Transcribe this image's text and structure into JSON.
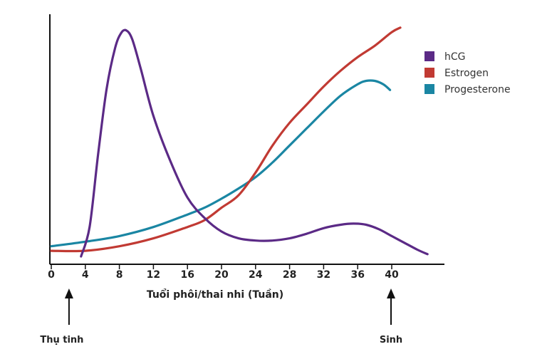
{
  "chart_data": {
    "type": "line",
    "title": "",
    "xlabel": "Tuổi phôi/thai nhi (Tuần)",
    "ylabel": "",
    "xlim": [
      0,
      46
    ],
    "ylim": [
      0,
      100
    ],
    "xticks": [
      0,
      4,
      8,
      12,
      16,
      20,
      24,
      28,
      32,
      36,
      40
    ],
    "yticks_shown": false,
    "grid": false,
    "legend": "top-right",
    "series": [
      {
        "name": "hCG",
        "color": "#5b2a86",
        "x": [
          3.5,
          4.5,
          5.5,
          6.5,
          7.5,
          8.2,
          8.8,
          9.5,
          10.5,
          12,
          14,
          16,
          18,
          20,
          22,
          24,
          26,
          28,
          30,
          32,
          34,
          35.5,
          37,
          38.5,
          40,
          41.5,
          43,
          44.2
        ],
        "y": [
          0,
          13,
          45,
          74,
          92,
          98.6,
          99.8,
          96,
          83,
          62,
          42,
          26,
          17,
          11,
          8,
          7,
          7,
          8,
          10,
          12.5,
          14,
          14.5,
          14,
          12,
          9,
          6,
          3,
          1
        ]
      },
      {
        "name": "Estrogen",
        "color": "#c13a33",
        "x": [
          0,
          4,
          8,
          12,
          16,
          18,
          20,
          22,
          24,
          26,
          28,
          30,
          32,
          34,
          36,
          38,
          40,
          41
        ],
        "y": [
          2.5,
          2.5,
          4.5,
          8,
          13,
          16,
          21.5,
          27,
          37,
          49,
          59,
          67,
          75,
          82,
          88,
          93,
          99,
          101
        ]
      },
      {
        "name": "Progesterone",
        "color": "#1a86a3",
        "x": [
          0,
          4,
          8,
          12,
          16,
          18,
          20,
          22,
          24,
          26,
          28,
          30,
          32,
          34,
          36,
          37,
          38,
          39,
          39.8
        ],
        "y": [
          4.5,
          6.5,
          9,
          13,
          18.5,
          21.5,
          25.5,
          30,
          35,
          41.5,
          49,
          56.5,
          64,
          71,
          76,
          77.5,
          77.5,
          76,
          73.5
        ]
      }
    ],
    "annotations": [
      {
        "text": "Thụ tinh",
        "x": 2,
        "kind": "arrow-up"
      },
      {
        "text": "Sinh",
        "x": 40,
        "kind": "arrow-up"
      }
    ]
  }
}
